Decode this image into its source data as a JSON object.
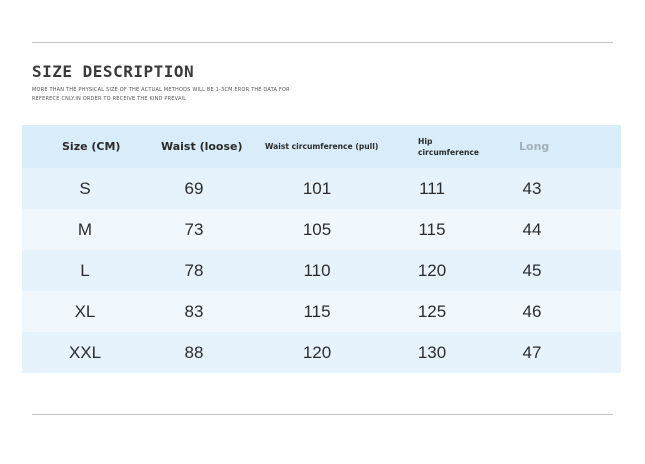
{
  "title": "SIZE DESCRIPTION",
  "note": "MORE THAN THE PHYSICAL SIZE OF THE ACTUAL METHODS WILL BE 1-3CM EROR,THE DATA FOR REFERECE CNLY.IN ORDER TO RECEIVE THE KIND PREVAIL",
  "table": {
    "headers": [
      "Size (CM)",
      "Waist (loose)",
      "Waist circumference (pull)",
      "Hip circumference",
      "Long"
    ],
    "rows": [
      [
        "S",
        "69",
        "101",
        "111",
        "43"
      ],
      [
        "M",
        "73",
        "105",
        "115",
        "44"
      ],
      [
        "L",
        "78",
        "110",
        "120",
        "45"
      ],
      [
        "XL",
        "83",
        "115",
        "125",
        "46"
      ],
      [
        "XXL",
        "88",
        "120",
        "130",
        "47"
      ]
    ]
  },
  "colors": {
    "header_bg": "#d9ecfa",
    "row_bg_a": "#e6f3fd",
    "row_bg_b": "#f0f8fe",
    "muted_header": "#a3b0ba"
  }
}
